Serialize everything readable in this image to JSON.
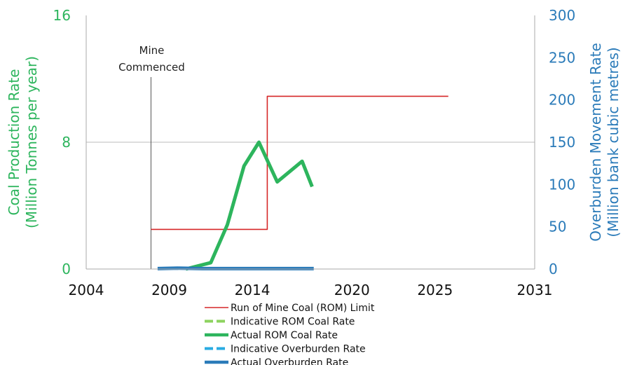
{
  "chart_data": {
    "type": "line",
    "x_ticks": [
      "2004",
      "2009",
      "2014",
      "2020",
      "2025",
      "2031"
    ],
    "xlim": [
      2004,
      2031
    ],
    "y_left": {
      "label_line1": "Coal Production Rate",
      "label_line2": "(Million Tonnes per year)",
      "ticks": [
        "0",
        "8",
        "16"
      ],
      "ylim": [
        0,
        16
      ],
      "color": "#2db55d"
    },
    "y_right": {
      "label_line1": "Overburden Movement Rate",
      "label_line2": "(Million bank cubic metres)",
      "ticks": [
        "0",
        "50",
        "100",
        "150",
        "200",
        "250",
        "300"
      ],
      "ylim": [
        0,
        300
      ],
      "color": "#2b7bb9"
    },
    "grid": "horizontal at y=8",
    "annotation": {
      "line1": "Mine",
      "line2": "Commenced",
      "x": 2007.9
    },
    "series": [
      {
        "name": "Run of Mine Coal (ROM) Limit",
        "axis": "left",
        "color": "#d62728",
        "style": "thin-solid",
        "points": [
          [
            2007.9,
            2.5
          ],
          [
            2014.9,
            2.5
          ],
          [
            2014.9,
            10.9
          ],
          [
            2025.8,
            10.9
          ]
        ]
      },
      {
        "name": "Indicative ROM Coal Rate",
        "axis": "left",
        "color": "#8dd35f",
        "style": "dashed",
        "points": []
      },
      {
        "name": "Actual ROM Coal Rate",
        "axis": "left",
        "color": "#2db55d",
        "style": "thick-solid",
        "points": [
          [
            2010.0,
            0.0
          ],
          [
            2011.5,
            0.4
          ],
          [
            2012.5,
            2.8
          ],
          [
            2013.5,
            6.5
          ],
          [
            2014.4,
            8.0
          ],
          [
            2015.5,
            5.5
          ],
          [
            2017.0,
            6.8
          ],
          [
            2017.6,
            5.2
          ]
        ]
      },
      {
        "name": "Indicative Overburden Rate",
        "axis": "right",
        "color": "#29abe2",
        "style": "dashed",
        "points": []
      },
      {
        "name": "Actual Overburden Rate",
        "axis": "right",
        "color": "#2b7bb9",
        "style": "thick-solid",
        "points": [
          [
            2008.3,
            0.5
          ],
          [
            2009.5,
            1.0
          ],
          [
            2011.0,
            0.5
          ],
          [
            2017.7,
            0.5
          ]
        ]
      }
    ],
    "legend_position": "bottom-center"
  }
}
